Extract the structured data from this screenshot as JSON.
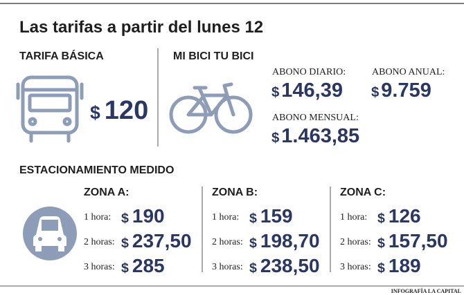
{
  "title": "Las tarifas a partir del lunes 12",
  "currency": "$",
  "basic": {
    "heading": "TARIFA BÁSICA",
    "price": "120"
  },
  "bike": {
    "heading": "MI BICI TU BICI",
    "plans": [
      {
        "label": "ABONO DIARIO:",
        "price": "146,39"
      },
      {
        "label": "ABONO ANUAL:",
        "price": "9.759"
      },
      {
        "label": "ABONO MENSUAL:",
        "price": "1.463,85"
      }
    ]
  },
  "parking": {
    "heading": "ESTACIONAMIENTO MEDIDO",
    "zones": [
      {
        "name": "ZONA A:",
        "rows": [
          {
            "label": "1 hora:",
            "price": "190"
          },
          {
            "label": "2 horas:",
            "price": "237,50"
          },
          {
            "label": "3 horas:",
            "price": "285"
          }
        ]
      },
      {
        "name": "ZONA B:",
        "rows": [
          {
            "label": "1 hora:",
            "price": "159"
          },
          {
            "label": "2 horas:",
            "price": "198,70"
          },
          {
            "label": "3 horas:",
            "price": "238,50"
          }
        ]
      },
      {
        "name": "ZONA C:",
        "rows": [
          {
            "label": "1 hora:",
            "price": "126"
          },
          {
            "label": "2 horas:",
            "price": "157,50"
          },
          {
            "label": "3 horas:",
            "price": "189"
          }
        ]
      }
    ]
  },
  "credit": "INFOGRAFÍA LA CAPITAL"
}
